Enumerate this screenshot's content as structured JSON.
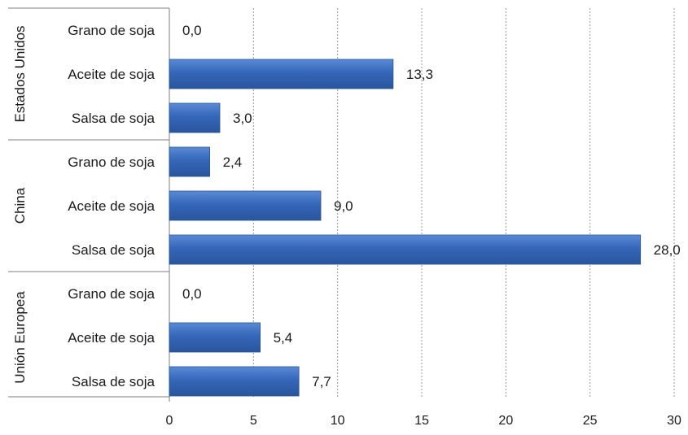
{
  "chart_data": {
    "type": "bar",
    "orientation": "horizontal",
    "title": "",
    "xlabel": "",
    "ylabel": "",
    "xlim": [
      0,
      30
    ],
    "x_ticks": [
      "0",
      "5",
      "10",
      "15",
      "20",
      "25",
      "30"
    ],
    "grid": "vertical dotted",
    "legend": "none",
    "bar_color": "#3566b8",
    "groups": [
      {
        "name": "Estados Unidos",
        "categories": [
          "Grano de soja",
          "Aceite de soja",
          "Salsa de soja"
        ],
        "values": [
          0.0,
          13.3,
          3.0
        ],
        "labels": [
          "0,0",
          "13,3",
          "3,0"
        ]
      },
      {
        "name": "China",
        "categories": [
          "Grano de soja",
          "Aceite de soja",
          "Salsa de soja"
        ],
        "values": [
          2.4,
          9.0,
          28.0
        ],
        "labels": [
          "2,4",
          "9,0",
          "28,0"
        ]
      },
      {
        "name": "Unión Europea",
        "categories": [
          "Grano de soja",
          "Aceite de soja",
          "Salsa de soja"
        ],
        "values": [
          0.0,
          5.4,
          7.7
        ],
        "labels": [
          "0,0",
          "5,4",
          "7,7"
        ]
      }
    ]
  }
}
